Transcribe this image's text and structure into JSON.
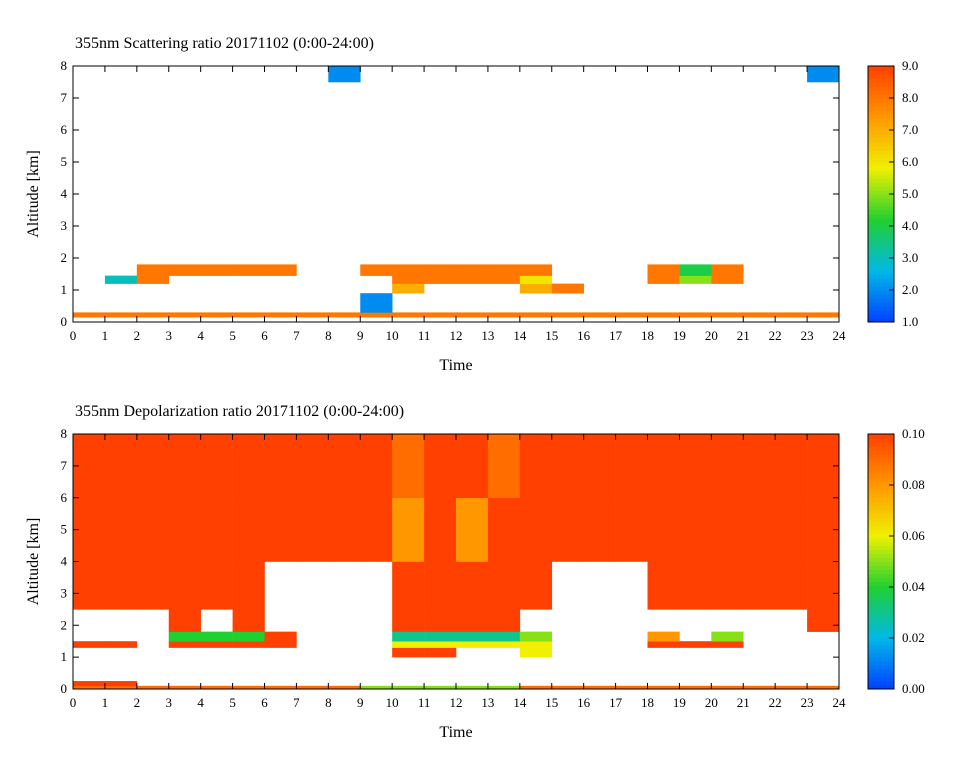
{
  "chart_data": [
    {
      "type": "heatmap",
      "title": "355nm Scattering ratio  20171102 (0:00-24:00)",
      "xlabel": "Time",
      "ylabel": "Altitude [km]",
      "xlim": [
        0,
        24
      ],
      "ylim": [
        0,
        8
      ],
      "xticks": [
        0,
        1,
        2,
        3,
        4,
        5,
        6,
        7,
        8,
        9,
        10,
        11,
        12,
        13,
        14,
        15,
        16,
        17,
        18,
        19,
        20,
        21,
        22,
        23,
        24
      ],
      "yticks": [
        0,
        1,
        2,
        3,
        4,
        5,
        6,
        7,
        8
      ],
      "xbins": [
        0,
        1,
        2,
        3,
        4,
        5,
        6,
        7,
        8,
        9,
        10,
        11,
        12,
        13,
        14,
        15,
        16,
        17,
        18,
        19,
        20,
        21,
        22,
        23,
        24
      ],
      "ybins": [
        0,
        0.15,
        0.3,
        0.9,
        1.2,
        1.45,
        1.8,
        7.5,
        8
      ],
      "colors": [
        "#0040ff",
        "#00b8e8",
        "#20d030",
        "#f0f000",
        "#ff9800",
        "#ff4000"
      ],
      "clim": [
        1,
        9
      ],
      "cticks": [
        {
          "value": 1,
          "label": "1.0"
        },
        {
          "value": 2,
          "label": "2.0"
        },
        {
          "value": 3,
          "label": "3.0"
        },
        {
          "value": 4,
          "label": "4.0"
        },
        {
          "value": 5,
          "label": "5.0"
        },
        {
          "value": 6,
          "label": "6.0"
        },
        {
          "value": 7,
          "label": "7.0"
        },
        {
          "value": 8,
          "label": "8.0"
        },
        {
          "value": 9,
          "label": "9.0"
        }
      ],
      "z": [
        [
          null,
          null,
          null,
          null,
          null,
          null,
          null,
          null,
          null,
          null,
          null,
          null,
          null,
          null,
          null,
          null,
          null,
          null,
          null,
          null,
          null,
          null,
          null,
          null
        ],
        [
          8,
          8,
          8,
          8,
          8,
          8,
          8,
          8,
          8,
          8,
          8,
          8,
          8,
          8,
          8,
          8,
          8,
          8,
          8,
          8,
          8,
          8,
          8,
          8
        ],
        [
          null,
          null,
          null,
          null,
          null,
          null,
          null,
          null,
          null,
          2,
          null,
          null,
          null,
          null,
          null,
          null,
          null,
          null,
          null,
          null,
          null,
          null,
          null,
          null
        ],
        [
          null,
          null,
          null,
          null,
          null,
          null,
          null,
          null,
          null,
          null,
          7,
          null,
          null,
          null,
          7,
          8,
          null,
          null,
          null,
          null,
          null,
          null,
          null,
          null
        ],
        [
          null,
          3,
          8,
          null,
          null,
          null,
          null,
          null,
          null,
          null,
          8,
          8,
          8,
          8,
          6,
          null,
          null,
          null,
          8,
          5,
          8,
          null,
          null,
          null
        ],
        [
          null,
          null,
          8,
          8,
          8,
          8,
          8,
          null,
          null,
          8,
          8,
          8,
          8,
          8,
          8,
          null,
          null,
          null,
          8,
          4,
          8,
          null,
          null,
          null
        ],
        [
          null,
          null,
          null,
          null,
          null,
          null,
          null,
          null,
          null,
          null,
          null,
          null,
          null,
          null,
          null,
          null,
          null,
          null,
          null,
          null,
          null,
          null,
          null,
          null
        ],
        [
          null,
          null,
          null,
          null,
          null,
          null,
          null,
          null,
          2,
          null,
          null,
          null,
          null,
          null,
          null,
          null,
          null,
          null,
          null,
          null,
          null,
          null,
          null,
          2
        ]
      ]
    },
    {
      "type": "heatmap",
      "title": "355nm Depolarization ratio  20171102 (0:00-24:00)",
      "xlabel": "Time",
      "ylabel": "Altitude [km]",
      "xlim": [
        0,
        24
      ],
      "ylim": [
        0,
        8
      ],
      "xticks": [
        0,
        1,
        2,
        3,
        4,
        5,
        6,
        7,
        8,
        9,
        10,
        11,
        12,
        13,
        14,
        15,
        16,
        17,
        18,
        19,
        20,
        21,
        22,
        23,
        24
      ],
      "yticks": [
        0,
        1,
        2,
        3,
        4,
        5,
        6,
        7,
        8
      ],
      "xbins": [
        0,
        1,
        2,
        3,
        4,
        5,
        6,
        7,
        8,
        9,
        10,
        11,
        12,
        13,
        14,
        15,
        16,
        17,
        18,
        19,
        20,
        21,
        22,
        23,
        24
      ],
      "ybins": [
        0,
        0.1,
        0.25,
        1,
        1.3,
        1.5,
        1.8,
        2.5,
        4,
        6,
        8
      ],
      "colors": [
        "#0040ff",
        "#00b8e8",
        "#20d030",
        "#f0f000",
        "#ff9800",
        "#ff4000"
      ],
      "clim": [
        0,
        0.1
      ],
      "cticks": [
        {
          "value": 0,
          "label": "0.00"
        },
        {
          "value": 0.02,
          "label": "0.02"
        },
        {
          "value": 0.04,
          "label": "0.04"
        },
        {
          "value": 0.06,
          "label": "0.06"
        },
        {
          "value": 0.08,
          "label": "0.08"
        },
        {
          "value": 0.1,
          "label": "0.10"
        }
      ],
      "z": [
        [
          0.09,
          0.09,
          0.09,
          0.09,
          0.09,
          0.09,
          0.09,
          0.09,
          0.09,
          0.05,
          0.05,
          0.05,
          0.05,
          0.05,
          0.09,
          0.09,
          0.09,
          0.09,
          0.09,
          0.09,
          0.09,
          0.09,
          0.09,
          0.09
        ],
        [
          0.1,
          0.1,
          null,
          null,
          null,
          null,
          null,
          null,
          null,
          null,
          null,
          null,
          null,
          null,
          null,
          null,
          null,
          null,
          null,
          null,
          null,
          null,
          null,
          null
        ],
        [
          null,
          null,
          null,
          null,
          null,
          null,
          null,
          null,
          null,
          null,
          null,
          null,
          null,
          null,
          null,
          null,
          null,
          null,
          null,
          null,
          null,
          null,
          null,
          null
        ],
        [
          null,
          null,
          null,
          null,
          null,
          null,
          null,
          null,
          null,
          null,
          0.1,
          0.1,
          null,
          null,
          0.06,
          null,
          null,
          null,
          null,
          null,
          null,
          null,
          null,
          null
        ],
        [
          0.1,
          0.1,
          null,
          0.1,
          0.1,
          0.1,
          0.1,
          null,
          null,
          null,
          0.06,
          0.06,
          0.06,
          0.06,
          0.06,
          null,
          null,
          null,
          0.1,
          0.1,
          0.1,
          null,
          null,
          null
        ],
        [
          null,
          null,
          null,
          0.04,
          0.04,
          0.04,
          0.1,
          null,
          null,
          null,
          0.03,
          0.03,
          0.03,
          0.03,
          0.05,
          null,
          null,
          null,
          0.08,
          null,
          0.05,
          null,
          null,
          null
        ],
        [
          null,
          null,
          null,
          0.1,
          null,
          0.1,
          null,
          null,
          null,
          null,
          0.1,
          0.1,
          0.1,
          0.1,
          null,
          null,
          null,
          null,
          null,
          null,
          null,
          null,
          null,
          0.1
        ],
        [
          0.1,
          0.1,
          0.1,
          0.1,
          0.1,
          0.1,
          null,
          null,
          null,
          null,
          0.1,
          0.1,
          0.1,
          0.1,
          0.1,
          null,
          null,
          null,
          0.1,
          0.1,
          0.1,
          0.1,
          0.1,
          0.1
        ],
        [
          0.1,
          0.1,
          0.1,
          0.1,
          0.1,
          0.1,
          0.1,
          0.1,
          0.1,
          0.1,
          0.08,
          0.1,
          0.08,
          0.1,
          0.1,
          0.1,
          0.1,
          0.1,
          0.1,
          0.1,
          0.1,
          0.1,
          0.1,
          0.1
        ],
        [
          0.1,
          0.1,
          0.1,
          0.1,
          0.1,
          0.1,
          0.1,
          0.1,
          0.1,
          0.1,
          0.09,
          0.1,
          0.1,
          0.09,
          0.1,
          0.1,
          0.1,
          0.1,
          0.1,
          0.1,
          0.1,
          0.1,
          0.1,
          0.1
        ]
      ]
    }
  ]
}
